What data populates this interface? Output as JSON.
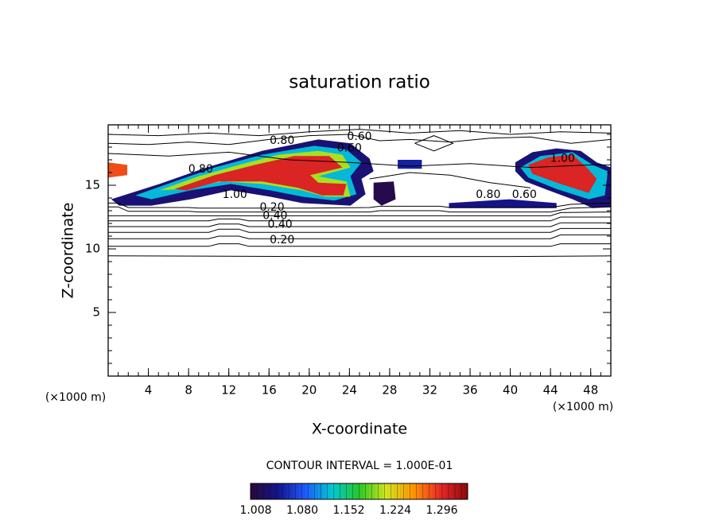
{
  "chart_data": {
    "type": "contour",
    "title": "saturation ratio",
    "x_label": "X-coordinate",
    "y_label": "Z-coordinate",
    "x_unit": "(×1000 m)",
    "y_unit": "(×1000 m)",
    "contour_interval_text": "CONTOUR INTERVAL = 1.000E-01",
    "xlim": [
      0,
      50
    ],
    "ylim": [
      0,
      19.75
    ],
    "xticks": [
      4,
      8,
      12,
      16,
      20,
      24,
      28,
      32,
      36,
      40,
      44,
      48
    ],
    "yticks": [
      5,
      10,
      15
    ],
    "xminor": 1,
    "yminor": 1,
    "line_color": "#000000",
    "colormap": [
      "#2a0838",
      "#14148c",
      "#1e5aff",
      "#00c8d2",
      "#28c828",
      "#d2e61e",
      "#ff9600",
      "#e82828",
      "#8c0a0a"
    ],
    "colorbar": {
      "lim": [
        1.0,
        1.336
      ],
      "ticks": [
        1.008,
        {
          "value": 1.08,
          "label": "1.080"
        },
        1.152,
        1.224,
        1.296
      ]
    },
    "regions": [
      {
        "value": 1.03,
        "x": [
          0.3,
          5.1,
          9.8,
          15.3,
          20.9,
          24.1,
          26.0,
          26.4,
          25.2,
          25.6,
          24.1,
          19.3,
          16.1,
          12.2,
          8.2,
          4.3,
          1.1
        ],
        "z": [
          13.9,
          15.1,
          16.4,
          17.7,
          18.6,
          18.3,
          17.1,
          16.1,
          15.5,
          14.3,
          13.4,
          13.6,
          14.1,
          14.6,
          13.9,
          13.4,
          13.4
        ]
      },
      {
        "value": 1.12,
        "x": [
          2.7,
          6.6,
          10.6,
          15.3,
          20.5,
          23.7,
          25.2,
          24.1,
          24.7,
          22.5,
          19.3,
          16.1,
          12.2,
          8.2,
          4.3
        ],
        "z": [
          14.2,
          15.3,
          16.4,
          17.4,
          18.1,
          17.8,
          16.8,
          15.7,
          14.3,
          13.8,
          14.1,
          14.6,
          15.1,
          14.6,
          13.9
        ]
      },
      {
        "value": 1.2,
        "x": [
          5.1,
          9.0,
          13.0,
          16.9,
          20.9,
          23.3,
          24.1,
          20.9,
          23.7,
          24.1,
          21.6,
          19.3,
          15.3,
          11.4,
          7.4
        ],
        "z": [
          14.6,
          15.7,
          16.6,
          17.4,
          17.7,
          17.4,
          16.4,
          15.7,
          15.3,
          14.1,
          14.1,
          14.6,
          15.1,
          15.3,
          14.7
        ]
      },
      {
        "value": 1.3,
        "x": [
          6.6,
          10.6,
          14.6,
          18.5,
          22.0,
          23.3,
          20.1,
          20.9,
          23.7,
          23.4,
          21.3,
          18.9,
          15.3,
          11.0,
          7.8
        ],
        "z": [
          14.7,
          15.8,
          16.6,
          17.3,
          17.3,
          16.4,
          15.8,
          15.2,
          15.1,
          14.2,
          14.2,
          14.8,
          15.3,
          15.3,
          14.6
        ]
      },
      {
        "value": 1.03,
        "x": [
          40.5,
          42.2,
          44.6,
          47.0,
          48.6,
          50,
          50,
          48.2,
          46.2,
          43.8,
          41.5,
          40.5
        ],
        "z": [
          16.8,
          17.6,
          17.9,
          17.7,
          16.8,
          16.4,
          13.3,
          13.2,
          13.9,
          14.6,
          15.3,
          16.1
        ]
      },
      {
        "value": 1.12,
        "x": [
          41.0,
          43.0,
          46.2,
          48.2,
          49.7,
          49.4,
          47.8,
          44.6,
          41.8
        ],
        "z": [
          16.4,
          17.3,
          17.6,
          16.6,
          16.1,
          14.2,
          13.9,
          14.7,
          15.6
        ]
      },
      {
        "value": 1.3,
        "x": [
          41.8,
          43.8,
          46.2,
          47.6,
          48.6,
          47.8,
          45.0,
          42.2
        ],
        "z": [
          16.6,
          17.2,
          17.4,
          16.4,
          15.5,
          14.4,
          15.1,
          15.9
        ]
      },
      {
        "value": 1.28,
        "x": [
          0,
          1.9,
          1.9,
          0
        ],
        "z": [
          16.8,
          16.6,
          15.8,
          15.6
        ]
      },
      {
        "value": 1.05,
        "x": [
          28.8,
          31.2,
          31.2,
          28.8
        ],
        "z": [
          17.0,
          17.0,
          16.3,
          16.3
        ]
      },
      {
        "value": 1.01,
        "x": [
          26.4,
          28.4,
          28.6,
          27.2,
          26.4
        ],
        "z": [
          15.2,
          15.3,
          13.9,
          13.4,
          13.9
        ]
      },
      {
        "value": 1.04,
        "x": [
          33.9,
          39.9,
          44.6,
          44.6,
          33.9
        ],
        "z": [
          13.6,
          13.9,
          13.6,
          13.2,
          13.2
        ]
      }
    ],
    "contours": [
      {
        "x": [
          0,
          20,
          40,
          50
        ],
        "z": [
          9.45,
          9.4,
          9.4,
          9.45
        ]
      },
      {
        "x": [
          0,
          10,
          11,
          13,
          14,
          30,
          44,
          45,
          50
        ],
        "z": [
          10.2,
          10.2,
          10.4,
          10.4,
          10.2,
          10.2,
          10.2,
          10.4,
          10.4
        ]
      },
      {
        "x": [
          0,
          10,
          11,
          13,
          14,
          30,
          44,
          45,
          50
        ],
        "z": [
          10.8,
          10.8,
          11.0,
          11.0,
          10.8,
          10.8,
          10.8,
          11.1,
          11.1
        ]
      },
      {
        "x": [
          0,
          10,
          11,
          13,
          14,
          30,
          44,
          45,
          50
        ],
        "z": [
          11.3,
          11.3,
          11.55,
          11.55,
          11.3,
          11.3,
          11.3,
          11.6,
          11.6
        ]
      },
      {
        "x": [
          0,
          10,
          11,
          13,
          14,
          30,
          44,
          45,
          50
        ],
        "z": [
          11.75,
          11.75,
          11.95,
          11.95,
          11.75,
          11.75,
          11.75,
          12.05,
          12.05
        ]
      },
      {
        "x": [
          0,
          10,
          11,
          13,
          14,
          30,
          44,
          45,
          50
        ],
        "z": [
          12.2,
          12.2,
          12.35,
          12.35,
          12.2,
          12.2,
          12.2,
          12.5,
          12.5
        ]
      },
      {
        "x": [
          0,
          8,
          9,
          20,
          30,
          44,
          45,
          50
        ],
        "z": [
          12.6,
          12.6,
          12.6,
          12.6,
          12.6,
          12.6,
          12.85,
          12.9
        ]
      },
      {
        "x": [
          0,
          1,
          2,
          8,
          9,
          20,
          26,
          27,
          33,
          34,
          44,
          46,
          50
        ],
        "z": [
          13.3,
          13.3,
          12.95,
          12.95,
          12.9,
          12.9,
          12.9,
          13.0,
          13.0,
          12.9,
          12.9,
          13.2,
          13.3
        ]
      },
      {
        "x": [
          0,
          1,
          2,
          8,
          9,
          20,
          26,
          27,
          33,
          34,
          44,
          46,
          50
        ],
        "z": [
          13.6,
          13.6,
          13.25,
          13.25,
          13.2,
          13.2,
          13.25,
          13.35,
          13.35,
          13.25,
          13.25,
          13.5,
          13.6
        ]
      },
      {
        "x": [
          0,
          4,
          8,
          12,
          16,
          20,
          24,
          27,
          30,
          34,
          38,
          42,
          46,
          50
        ],
        "z": [
          18.3,
          18.2,
          18.4,
          18.2,
          18.6,
          18.9,
          19.0,
          18.5,
          18.6,
          18.4,
          18.7,
          18.8,
          18.3,
          18.6
        ]
      },
      {
        "x": [
          0,
          5,
          10,
          15,
          20,
          25,
          30,
          35,
          40,
          45,
          50
        ],
        "z": [
          19.0,
          18.9,
          19.1,
          18.9,
          19.2,
          19.4,
          19.1,
          19.3,
          19.0,
          19.2,
          19.1
        ]
      },
      {
        "x": [
          0,
          6,
          12,
          18,
          24,
          30,
          36,
          42,
          48,
          50
        ],
        "z": [
          17.5,
          17.3,
          17.6,
          17.0,
          16.8,
          16.5,
          16.7,
          16.4,
          16.6,
          16.6
        ]
      },
      {
        "x": [
          26,
          30,
          34,
          38,
          42
        ],
        "z": [
          15.5,
          16.0,
          15.8,
          15.2,
          14.8
        ]
      },
      {
        "x": [
          30.5,
          32.4,
          34.3,
          32.4,
          30.5
        ],
        "z": [
          18.3,
          18.9,
          18.3,
          17.7,
          18.3
        ]
      }
    ],
    "contour_labels": [
      {
        "text": "0.80",
        "x": 17.3,
        "z": 18.5
      },
      {
        "text": "0.60",
        "x": 25.0,
        "z": 18.8
      },
      {
        "text": "0.60",
        "x": 24.0,
        "z": 17.9
      },
      {
        "text": "0.80",
        "x": 9.2,
        "z": 16.25
      },
      {
        "text": "1.00",
        "x": 12.6,
        "z": 14.25
      },
      {
        "text": "1.00",
        "x": 45.2,
        "z": 17.1
      },
      {
        "text": "0.80",
        "x": 37.8,
        "z": 14.25
      },
      {
        "text": "0.60",
        "x": 41.4,
        "z": 14.25
      },
      {
        "text": "0.20",
        "x": 16.3,
        "z": 13.25
      },
      {
        "text": "0.40",
        "x": 16.6,
        "z": 12.6
      },
      {
        "text": "0.40",
        "x": 17.1,
        "z": 11.9
      },
      {
        "text": "0.20",
        "x": 17.3,
        "z": 10.7
      }
    ]
  }
}
